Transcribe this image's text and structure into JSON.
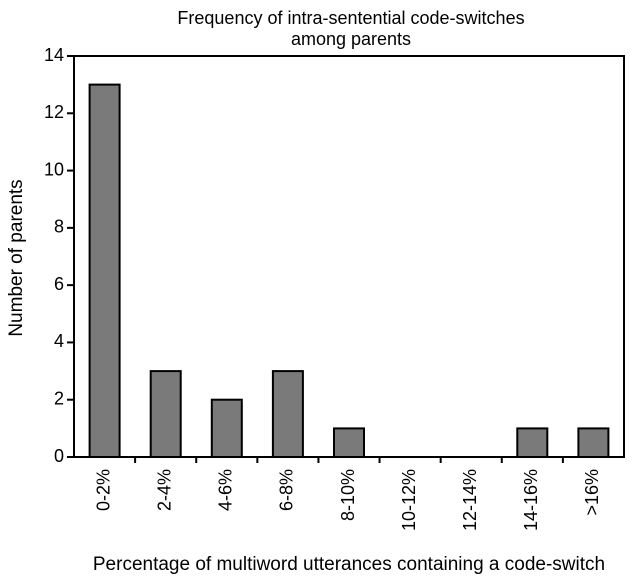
{
  "chart_data": {
    "type": "bar",
    "title_lines": [
      "Frequency of intra-sentential code-switches",
      "among parents"
    ],
    "xlabel": "Percentage of multiword utterances containing a code-switch",
    "ylabel": "Number of parents",
    "categories": [
      "0-2%",
      "2-4%",
      "4-6%",
      "6-8%",
      "8-10%",
      "10-12%",
      "12-14%",
      "14-16%",
      ">16%"
    ],
    "values": [
      13,
      3,
      2,
      3,
      1,
      0,
      0,
      1,
      1
    ],
    "ylim": [
      0,
      14
    ],
    "yticks": [
      0,
      2,
      4,
      6,
      8,
      10,
      12,
      14
    ],
    "grid": false,
    "bar_color": "#7a7a7a"
  }
}
